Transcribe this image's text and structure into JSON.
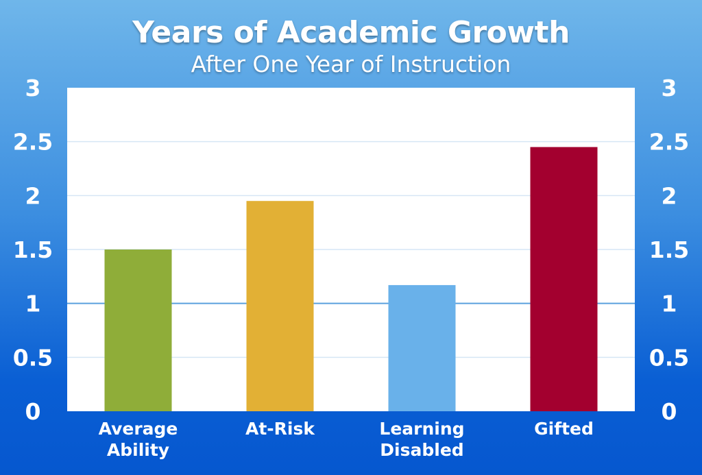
{
  "chart_data": {
    "type": "bar",
    "title": "Years of Academic Growth",
    "subtitle": "After One Year of Instruction",
    "categories": [
      [
        "Average",
        "Ability"
      ],
      [
        "At-Risk"
      ],
      [
        "Learning",
        "Disabled"
      ],
      [
        "Gifted"
      ]
    ],
    "values": [
      1.5,
      1.95,
      1.17,
      2.45
    ],
    "colors": [
      "#8fad39",
      "#e2b035",
      "#69b1ea",
      "#a3002f"
    ],
    "ylim": [
      0,
      3
    ],
    "yticks": [
      "3",
      "2.5",
      "2",
      "1.5",
      "1",
      "0.5",
      "0"
    ],
    "ytick_values": [
      3,
      2.5,
      2,
      1.5,
      1,
      0.5,
      0
    ],
    "y_axis_both_sides": true,
    "grid": true,
    "highlight_gridline": 1,
    "gridline_color": "#d6e6f5",
    "highlight_color": "#5aa0dd",
    "plot_background": "#ffffff"
  }
}
